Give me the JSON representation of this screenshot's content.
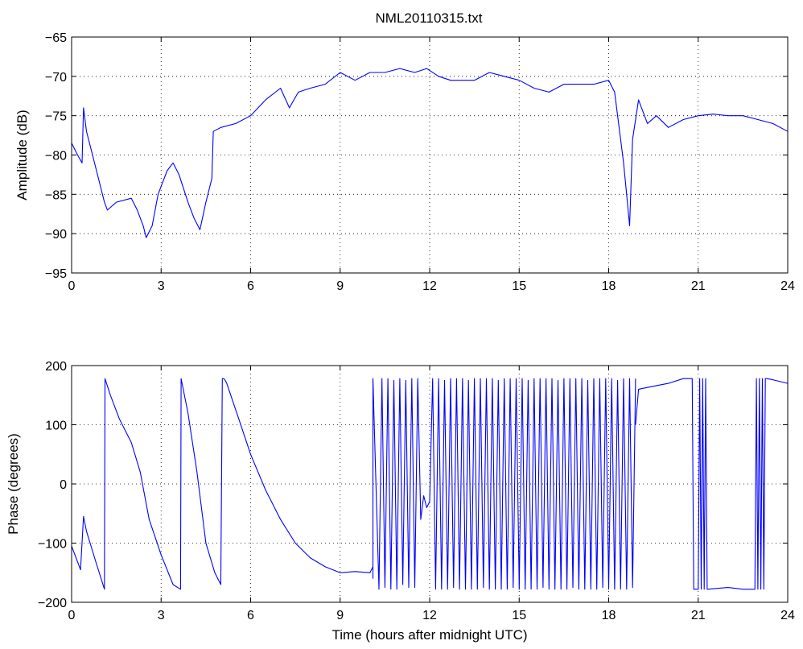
{
  "title": "NML20110315.txt",
  "colors": {
    "series": "#0000ff",
    "grid": "#000000",
    "axes": "#000000"
  },
  "chart_data": [
    {
      "type": "line",
      "title": "NML20110315.txt",
      "xlabel": "",
      "ylabel": "Amplitude (dB)",
      "xlim": [
        0,
        24
      ],
      "ylim": [
        -95,
        -65
      ],
      "xticks": [
        0,
        3,
        6,
        9,
        12,
        15,
        18,
        21,
        24
      ],
      "yticks": [
        -95,
        -90,
        -85,
        -80,
        -75,
        -70,
        -65
      ],
      "grid": true,
      "series": [
        {
          "x": [
            0,
            0.2,
            0.35,
            0.4,
            0.5,
            0.7,
            0.9,
            1.1,
            1.2,
            1.5,
            2.0,
            2.2,
            2.4,
            2.5,
            2.7,
            2.9,
            3.2,
            3.4,
            3.6,
            3.9,
            4.1,
            4.3,
            4.5,
            4.7,
            4.75,
            5.0,
            5.5,
            6.0,
            6.5,
            7.0,
            7.3,
            7.6,
            8.0,
            8.5,
            9.0,
            9.5,
            10.0,
            10.5,
            11.0,
            11.5,
            11.9,
            12.3,
            12.7,
            13.0,
            13.5,
            14.0,
            14.5,
            15.0,
            15.5,
            16.0,
            16.5,
            17.0,
            17.5,
            18.0,
            18.2,
            18.5,
            18.6,
            18.7,
            18.8,
            19.0,
            19.3,
            19.6,
            20.0,
            20.5,
            21.0,
            21.5,
            22.0,
            22.5,
            23.0,
            23.5,
            24.0
          ],
          "values": [
            -78.5,
            -80.0,
            -81.0,
            -74.0,
            -77.0,
            -80.0,
            -83.0,
            -86.0,
            -87.0,
            -86.0,
            -85.5,
            -87.0,
            -89.0,
            -90.5,
            -89.0,
            -85.0,
            -82.0,
            -81.0,
            -82.5,
            -86.0,
            -88.0,
            -89.5,
            -86.0,
            -83.0,
            -77.0,
            -76.5,
            -76.0,
            -75.0,
            -73.0,
            -71.5,
            -74.0,
            -72.0,
            -71.5,
            -71.0,
            -69.5,
            -70.5,
            -69.5,
            -69.5,
            -69.0,
            -69.5,
            -69.0,
            -70.0,
            -70.5,
            -70.5,
            -70.5,
            -69.5,
            -70.0,
            -70.5,
            -71.5,
            -72.0,
            -71.0,
            -71.0,
            -71.0,
            -70.5,
            -72.0,
            -81.0,
            -85.0,
            -89.0,
            -78.0,
            -73.0,
            -76.0,
            -75.0,
            -76.5,
            -75.5,
            -75.0,
            -74.8,
            -75.0,
            -75.0,
            -75.5,
            -76.0,
            -77.0
          ]
        }
      ]
    },
    {
      "type": "line",
      "title": "",
      "xlabel": "Time (hours after midnight UTC)",
      "ylabel": "Phase (degrees)",
      "xlim": [
        0,
        24
      ],
      "ylim": [
        -200,
        200
      ],
      "xticks": [
        0,
        3,
        6,
        9,
        12,
        15,
        18,
        21,
        24
      ],
      "yticks": [
        -200,
        -100,
        0,
        100,
        200
      ],
      "grid": true,
      "series": [
        {
          "x": [
            0,
            0.3,
            0.4,
            0.5,
            0.8,
            1.1,
            1.12,
            1.3,
            1.6,
            2.0,
            2.3,
            2.6,
            3.0,
            3.4,
            3.65,
            3.67,
            3.9,
            4.2,
            4.5,
            4.8,
            5.0,
            5.05,
            5.1,
            5.15,
            5.2,
            5.6,
            6.0,
            6.5,
            7.0,
            7.5,
            8.0,
            8.5,
            9.0,
            9.5,
            10.0,
            10.1
          ],
          "values": [
            -105,
            -145,
            -55,
            -80,
            -130,
            -178,
            178,
            150,
            110,
            70,
            20,
            -60,
            -120,
            -170,
            -178,
            178,
            120,
            20,
            -100,
            -150,
            -170,
            178,
            178,
            175,
            170,
            110,
            50,
            -10,
            -60,
            -100,
            -125,
            -140,
            -150,
            -148,
            -150,
            -140
          ]
        },
        {
          "x": [
            10.1,
            10.1,
            10.3,
            10.4,
            10.5,
            10.6,
            10.7,
            10.8,
            10.9,
            11.0,
            11.1,
            11.2,
            11.3,
            11.4,
            11.5,
            11.6,
            11.7,
            11.8,
            11.9,
            12.0,
            12.1,
            12.2,
            12.3,
            12.4,
            12.5,
            12.6,
            12.7,
            12.8,
            12.9,
            13.0,
            13.1,
            13.2,
            13.3,
            13.4,
            13.5,
            13.6,
            13.7,
            13.8,
            13.9,
            14.0,
            14.1,
            14.2,
            14.3,
            14.4,
            14.5,
            14.6,
            14.7,
            14.8,
            14.9,
            15.0,
            15.1,
            15.2,
            15.3,
            15.4,
            15.5,
            15.6,
            15.7,
            15.8,
            15.9,
            16.0,
            16.1,
            16.2,
            16.3,
            16.4,
            16.5,
            16.6,
            16.7,
            16.8,
            16.9,
            17.0,
            17.1,
            17.2,
            17.3,
            17.4,
            17.5,
            17.6,
            17.7,
            17.8,
            17.9,
            18.0,
            18.1,
            18.2,
            18.3,
            18.4,
            18.5,
            18.6,
            18.7,
            18.8,
            18.9
          ],
          "values": [
            -160,
            178,
            -178,
            178,
            -175,
            178,
            -178,
            175,
            -178,
            178,
            -170,
            175,
            -175,
            178,
            -175,
            178,
            -60,
            -20,
            -40,
            -30,
            178,
            -178,
            178,
            -178,
            175,
            -178,
            178,
            -175,
            178,
            -178,
            178,
            -178,
            175,
            -178,
            178,
            -178,
            178,
            -175,
            178,
            -178,
            178,
            -178,
            175,
            -178,
            178,
            -178,
            178,
            -175,
            178,
            -178,
            178,
            -178,
            175,
            -178,
            178,
            -178,
            178,
            -175,
            178,
            -178,
            178,
            -178,
            175,
            -178,
            178,
            -178,
            178,
            -175,
            178,
            -178,
            178,
            -178,
            175,
            -178,
            178,
            -178,
            178,
            -175,
            178,
            -178,
            178,
            -178,
            175,
            -178,
            178,
            -178,
            178,
            -175,
            178
          ]
        },
        {
          "x": [
            18.9,
            19.0,
            19.5,
            20.0,
            20.5,
            20.8,
            20.85,
            21.0,
            21.05,
            21.1,
            21.15,
            21.2,
            21.25,
            21.3,
            22.0,
            22.5,
            22.9,
            22.95,
            23.0,
            23.05,
            23.1,
            23.15,
            23.2,
            23.25,
            23.3,
            23.5,
            24.0
          ],
          "values": [
            100,
            160,
            165,
            170,
            178,
            178,
            -178,
            -178,
            178,
            -178,
            178,
            -178,
            178,
            -178,
            -175,
            -178,
            -178,
            178,
            -178,
            178,
            -178,
            178,
            -178,
            178,
            178,
            176,
            170
          ]
        }
      ]
    }
  ]
}
